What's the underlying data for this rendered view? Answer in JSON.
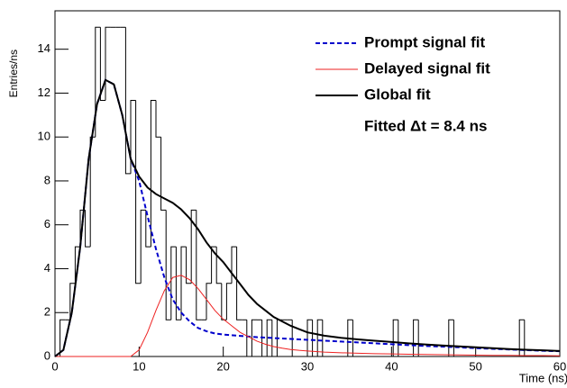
{
  "chart_data": {
    "type": "histogram",
    "xlabel": "Time (ns)",
    "ylabel": "Entries/ns",
    "annotation": "Fitted Δt = 8.4 ns",
    "xlim": [
      0,
      60
    ],
    "ylim": [
      0,
      15.75
    ],
    "xticks": [
      0,
      10,
      20,
      30,
      40,
      50,
      60
    ],
    "yticks": [
      0,
      2,
      4,
      6,
      8,
      10,
      12,
      14
    ],
    "bins": [
      0,
      0.6,
      1.2,
      1.8,
      2.4,
      3,
      3.6,
      4.2,
      4.8,
      5.4,
      6,
      6.6,
      7.2,
      7.8,
      8.4,
      9,
      9.6,
      10.2,
      10.8,
      11.4,
      12,
      12.6,
      13.2,
      13.8,
      14.4,
      15,
      15.6,
      16.2,
      16.8,
      17.4,
      18,
      18.6,
      19.2,
      19.8,
      20.4,
      21,
      21.6,
      22.2,
      22.8,
      23.4,
      24,
      24.6,
      25.2,
      25.8,
      26.4,
      27,
      27.6,
      28.2,
      28.8,
      29.4,
      30,
      30.6,
      31.2,
      31.8,
      32.4,
      33,
      33.6,
      34.2,
      34.8,
      35.4,
      36,
      36.6,
      37.2,
      37.8,
      38.4,
      39,
      39.6,
      40.2,
      40.8,
      41.4,
      42,
      42.6,
      43.2,
      43.8,
      44.4,
      45,
      45.6,
      46.2,
      46.8,
      47.4,
      48,
      48.6,
      49.2,
      49.8,
      50.4,
      51,
      51.6,
      52.2,
      52.8,
      53.4,
      54,
      54.6,
      55.2,
      55.8,
      56.4,
      57,
      57.6,
      58.2,
      58.8,
      59.4,
      60
    ],
    "histogram": {
      "color": "#000000",
      "values": [
        0,
        1.67,
        1.67,
        3.33,
        5,
        6.67,
        5,
        10,
        15,
        11.67,
        15,
        15,
        15,
        15,
        8.33,
        11.67,
        3.33,
        6.67,
        5,
        11.67,
        10,
        6.67,
        1.67,
        5,
        1.67,
        5,
        3.33,
        6.67,
        1.67,
        1.67,
        3.33,
        5,
        3.33,
        1.67,
        3.33,
        5,
        1.67,
        1.67,
        0,
        1.67,
        1.67,
        0,
        1.67,
        0,
        1.67,
        1.67,
        1.67,
        0,
        0,
        0,
        1.67,
        0,
        1.67,
        0,
        0,
        0,
        0,
        0,
        1.67,
        0,
        0,
        0,
        0,
        0,
        0,
        0,
        0,
        1.67,
        0,
        0,
        0,
        1.67,
        0,
        0,
        0,
        0,
        0,
        0,
        1.67,
        0,
        0,
        0,
        0,
        0,
        0,
        0,
        0,
        0,
        0,
        0,
        0,
        0,
        1.67,
        0,
        0,
        0,
        0,
        0,
        0,
        0
      ]
    },
    "x": [
      0,
      1,
      2,
      3,
      4,
      5,
      6,
      7,
      8,
      9,
      10,
      11,
      12,
      13,
      14,
      15,
      16,
      17,
      18,
      19,
      20,
      21,
      22,
      23,
      24,
      25,
      26,
      27,
      28,
      29,
      30,
      32,
      34,
      36,
      38,
      40,
      42,
      44,
      46,
      48,
      50,
      52,
      54,
      56,
      58,
      60
    ],
    "series": [
      {
        "name": "Prompt signal fit",
        "color": "#0000cc",
        "dash": true,
        "values": [
          0,
          0.3,
          2,
          5,
          9,
          11.5,
          12.6,
          12.4,
          11,
          9,
          8,
          6.4,
          4.9,
          3.6,
          2.6,
          2,
          1.6,
          1.3,
          1.15,
          1.05,
          1,
          0.97,
          0.94,
          0.91,
          0.88,
          0.86,
          0.84,
          0.82,
          0.8,
          0.78,
          0.76,
          0.72,
          0.68,
          0.64,
          0.6,
          0.56,
          0.52,
          0.48,
          0.45,
          0.42,
          0.38,
          0.35,
          0.32,
          0.29,
          0.26,
          0.24
        ]
      },
      {
        "name": "Delayed signal fit",
        "color": "#ee2222",
        "dash": false,
        "values": [
          0,
          0,
          0,
          0,
          0,
          0,
          0,
          0,
          0,
          0,
          0.3,
          1.1,
          2.1,
          3,
          3.6,
          3.7,
          3.5,
          3.1,
          2.6,
          2.1,
          1.7,
          1.4,
          1.1,
          0.9,
          0.7,
          0.56,
          0.45,
          0.38,
          0.32,
          0.28,
          0.25,
          0.2,
          0.17,
          0.15,
          0.13,
          0.12,
          0.1,
          0.09,
          0.08,
          0.07,
          0.06,
          0.05,
          0.05,
          0.04,
          0.04,
          0.03
        ]
      },
      {
        "name": "Global fit",
        "color": "#000000",
        "dash": false,
        "values": [
          0,
          0.3,
          2,
          5,
          9,
          11.5,
          12.6,
          12.4,
          11,
          9,
          8.2,
          7.7,
          7.4,
          7.2,
          7,
          6.7,
          6.3,
          5.8,
          5.2,
          4.7,
          4.3,
          3.8,
          3.3,
          2.8,
          2.4,
          2.1,
          1.8,
          1.6,
          1.4,
          1.25,
          1.1,
          0.95,
          0.85,
          0.78,
          0.72,
          0.66,
          0.6,
          0.55,
          0.5,
          0.46,
          0.42,
          0.38,
          0.34,
          0.31,
          0.28,
          0.25
        ]
      }
    ]
  }
}
